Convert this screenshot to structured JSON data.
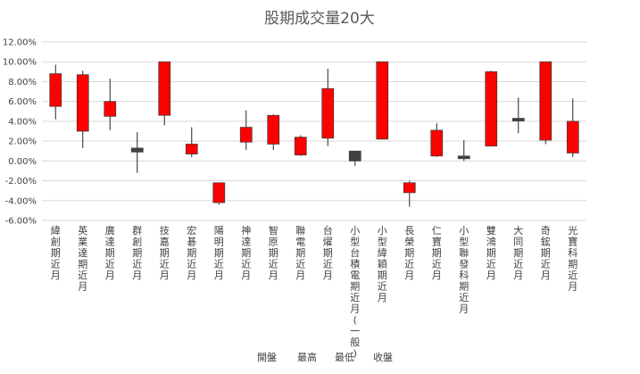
{
  "chart_data": {
    "type": "candlestick",
    "title": "股期成交量20大",
    "xlabel": "",
    "ylabel": "",
    "ylim": [
      -0.06,
      0.12
    ],
    "ytick_values": [
      -0.06,
      -0.04,
      -0.02,
      0.0,
      0.02,
      0.04,
      0.06,
      0.08,
      0.1,
      0.12
    ],
    "ytick_labels": [
      "-6.00%",
      "-4.00%",
      "-2.00%",
      "0.00%",
      "2.00%",
      "4.00%",
      "6.00%",
      "8.00%",
      "10.00%",
      "12.00%"
    ],
    "grid": true,
    "legend": [
      "開盤",
      "最高",
      "最低",
      "收盤"
    ],
    "legend_position": "bottom",
    "colors": {
      "up": "#ff0000",
      "down": "#404040",
      "wick": "#262626",
      "grid": "#d9d9d9"
    },
    "categories": [
      "緯創期近月",
      "英業達期近月",
      "廣達期近月",
      "群創期近月",
      "技嘉期近月",
      "宏碁期近月",
      "陽明期近月",
      "神達期近月",
      "智原期近月",
      "聯電期近月",
      "台燿期近月",
      "小型台積電期近月(一般)",
      "小型緯穎期近月",
      "長榮期近月",
      "仁寶期近月",
      "小型聯發科期近月",
      "雙鴻期近月",
      "大同期近月",
      "奇鋐期近月",
      "光寶科期近月"
    ],
    "open": [
      0.055,
      0.03,
      0.045,
      0.013,
      0.046,
      0.007,
      -0.042,
      0.019,
      0.017,
      0.006,
      0.023,
      0.01,
      0.022,
      -0.032,
      0.005,
      0.005,
      0.015,
      0.043,
      0.021,
      0.008
    ],
    "high": [
      0.097,
      0.091,
      0.083,
      0.029,
      0.1,
      0.034,
      -0.022,
      0.051,
      0.047,
      0.026,
      0.093,
      0.01,
      0.1,
      -0.02,
      0.038,
      0.021,
      0.091,
      0.064,
      0.1,
      0.063
    ],
    "low": [
      0.042,
      0.013,
      0.031,
      -0.012,
      0.036,
      0.004,
      -0.044,
      0.011,
      0.011,
      0.005,
      0.015,
      -0.005,
      0.022,
      -0.046,
      0.004,
      0.0,
      0.015,
      0.028,
      0.017,
      0.004
    ],
    "close": [
      0.088,
      0.087,
      0.06,
      0.009,
      0.1,
      0.017,
      -0.022,
      0.034,
      0.046,
      0.024,
      0.073,
      0.0,
      0.1,
      -0.022,
      0.031,
      0.003,
      0.09,
      0.041,
      0.1,
      0.04
    ]
  }
}
